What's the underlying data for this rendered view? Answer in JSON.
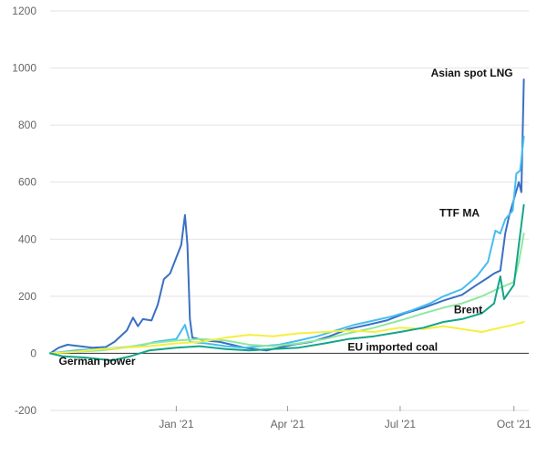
{
  "chart_data": {
    "type": "line",
    "title": "",
    "xlabel": "",
    "ylabel": "",
    "ylim": [
      -200,
      1200
    ],
    "y_ticks": [
      -200,
      0,
      200,
      400,
      600,
      800,
      1000,
      1200
    ],
    "x_range": [
      "2020-09-21",
      "2021-10-13"
    ],
    "x_ticks": [
      {
        "date": "2021-01-01",
        "label": "Jan '21"
      },
      {
        "date": "2021-04-01",
        "label": "Apr '21"
      },
      {
        "date": "2021-07-01",
        "label": "Jul '21"
      },
      {
        "date": "2021-10-01",
        "label": "Oct '21"
      }
    ],
    "grid": true,
    "legend": "none",
    "series": [
      {
        "name": "Asian spot LNG",
        "color": "#3b6fc4",
        "label_anchor_date": "2021-08-28",
        "label_anchor_value": 970,
        "points": [
          [
            "2020-09-21",
            0
          ],
          [
            "2020-09-28",
            20
          ],
          [
            "2020-10-05",
            30
          ],
          [
            "2020-10-15",
            25
          ],
          [
            "2020-10-25",
            20
          ],
          [
            "2020-11-05",
            22
          ],
          [
            "2020-11-12",
            40
          ],
          [
            "2020-11-22",
            80
          ],
          [
            "2020-11-27",
            125
          ],
          [
            "2020-12-01",
            95
          ],
          [
            "2020-12-05",
            120
          ],
          [
            "2020-12-12",
            115
          ],
          [
            "2020-12-17",
            170
          ],
          [
            "2020-12-22",
            260
          ],
          [
            "2020-12-27",
            280
          ],
          [
            "2021-01-05",
            380
          ],
          [
            "2021-01-08",
            485
          ],
          [
            "2021-01-10",
            380
          ],
          [
            "2021-01-12",
            120
          ],
          [
            "2021-01-14",
            55
          ],
          [
            "2021-01-25",
            45
          ],
          [
            "2021-02-05",
            40
          ],
          [
            "2021-02-15",
            30
          ],
          [
            "2021-02-25",
            20
          ],
          [
            "2021-03-05",
            15
          ],
          [
            "2021-03-15",
            10
          ],
          [
            "2021-03-25",
            20
          ],
          [
            "2021-04-05",
            30
          ],
          [
            "2021-04-20",
            40
          ],
          [
            "2021-05-05",
            60
          ],
          [
            "2021-05-20",
            85
          ],
          [
            "2021-06-05",
            100
          ],
          [
            "2021-06-20",
            115
          ],
          [
            "2021-07-05",
            140
          ],
          [
            "2021-07-20",
            160
          ],
          [
            "2021-08-05",
            185
          ],
          [
            "2021-08-20",
            205
          ],
          [
            "2021-09-01",
            240
          ],
          [
            "2021-09-10",
            265
          ],
          [
            "2021-09-15",
            280
          ],
          [
            "2021-09-20",
            290
          ],
          [
            "2021-09-24",
            420
          ],
          [
            "2021-09-27",
            480
          ],
          [
            "2021-10-03",
            570
          ],
          [
            "2021-10-05",
            600
          ],
          [
            "2021-10-07",
            565
          ],
          [
            "2021-10-09",
            960
          ]
        ]
      },
      {
        "name": "TTF MA",
        "color": "#46bdf0",
        "label_anchor_date": "2021-08-18",
        "label_anchor_value": 480,
        "points": [
          [
            "2020-09-21",
            0
          ],
          [
            "2020-10-01",
            5
          ],
          [
            "2020-10-15",
            12
          ],
          [
            "2020-11-01",
            15
          ],
          [
            "2020-11-15",
            20
          ],
          [
            "2020-12-01",
            25
          ],
          [
            "2020-12-15",
            40
          ],
          [
            "2021-01-01",
            50
          ],
          [
            "2021-01-08",
            100
          ],
          [
            "2021-01-12",
            40
          ],
          [
            "2021-01-25",
            35
          ],
          [
            "2021-02-10",
            25
          ],
          [
            "2021-02-25",
            20
          ],
          [
            "2021-03-10",
            25
          ],
          [
            "2021-03-25",
            30
          ],
          [
            "2021-04-10",
            45
          ],
          [
            "2021-04-25",
            60
          ],
          [
            "2021-05-10",
            80
          ],
          [
            "2021-05-25",
            100
          ],
          [
            "2021-06-10",
            115
          ],
          [
            "2021-06-25",
            130
          ],
          [
            "2021-07-10",
            150
          ],
          [
            "2021-07-25",
            175
          ],
          [
            "2021-08-05",
            200
          ],
          [
            "2021-08-20",
            225
          ],
          [
            "2021-09-01",
            270
          ],
          [
            "2021-09-10",
            320
          ],
          [
            "2021-09-16",
            430
          ],
          [
            "2021-09-20",
            420
          ],
          [
            "2021-09-24",
            470
          ],
          [
            "2021-09-30",
            500
          ],
          [
            "2021-10-03",
            630
          ],
          [
            "2021-10-06",
            640
          ],
          [
            "2021-10-09",
            760
          ]
        ]
      },
      {
        "name": "Brent",
        "color": "#8ee8a0",
        "label_anchor_date": "2021-08-25",
        "label_anchor_value": 140,
        "points": [
          [
            "2020-09-21",
            0
          ],
          [
            "2020-10-10",
            5
          ],
          [
            "2020-11-01",
            10
          ],
          [
            "2020-11-20",
            20
          ],
          [
            "2020-12-10",
            35
          ],
          [
            "2021-01-01",
            45
          ],
          [
            "2021-01-20",
            50
          ],
          [
            "2021-02-10",
            45
          ],
          [
            "2021-03-01",
            30
          ],
          [
            "2021-03-20",
            25
          ],
          [
            "2021-04-10",
            35
          ],
          [
            "2021-05-01",
            50
          ],
          [
            "2021-05-20",
            70
          ],
          [
            "2021-06-10",
            90
          ],
          [
            "2021-07-01",
            115
          ],
          [
            "2021-07-20",
            140
          ],
          [
            "2021-08-05",
            160
          ],
          [
            "2021-08-20",
            175
          ],
          [
            "2021-09-05",
            200
          ],
          [
            "2021-09-20",
            230
          ],
          [
            "2021-10-01",
            250
          ],
          [
            "2021-10-05",
            320
          ],
          [
            "2021-10-09",
            420
          ]
        ]
      },
      {
        "name": "EU imported coal",
        "color": "#f5ef40",
        "label_anchor_date": "2021-06-25",
        "label_anchor_value": 10,
        "points": [
          [
            "2020-09-21",
            0
          ],
          [
            "2020-10-10",
            5
          ],
          [
            "2020-11-01",
            15
          ],
          [
            "2020-11-20",
            20
          ],
          [
            "2020-12-10",
            25
          ],
          [
            "2021-01-01",
            35
          ],
          [
            "2021-01-20",
            40
          ],
          [
            "2021-02-10",
            55
          ],
          [
            "2021-03-01",
            65
          ],
          [
            "2021-03-20",
            60
          ],
          [
            "2021-04-10",
            70
          ],
          [
            "2021-05-01",
            75
          ],
          [
            "2021-05-20",
            80
          ],
          [
            "2021-06-10",
            75
          ],
          [
            "2021-07-01",
            90
          ],
          [
            "2021-07-20",
            85
          ],
          [
            "2021-08-05",
            95
          ],
          [
            "2021-08-20",
            85
          ],
          [
            "2021-09-05",
            75
          ],
          [
            "2021-09-20",
            90
          ],
          [
            "2021-10-01",
            100
          ],
          [
            "2021-10-09",
            110
          ]
        ]
      },
      {
        "name": "German power",
        "color": "#13a589",
        "label_anchor_date": "2020-10-29",
        "label_anchor_value": -40,
        "points": [
          [
            "2020-09-21",
            0
          ],
          [
            "2020-10-01",
            -10
          ],
          [
            "2020-10-20",
            -15
          ],
          [
            "2020-11-10",
            -25
          ],
          [
            "2020-11-25",
            -10
          ],
          [
            "2020-12-10",
            10
          ],
          [
            "2021-01-01",
            20
          ],
          [
            "2021-01-20",
            25
          ],
          [
            "2021-02-10",
            15
          ],
          [
            "2021-03-01",
            10
          ],
          [
            "2021-03-20",
            15
          ],
          [
            "2021-04-10",
            20
          ],
          [
            "2021-05-01",
            35
          ],
          [
            "2021-05-20",
            50
          ],
          [
            "2021-06-10",
            60
          ],
          [
            "2021-07-01",
            75
          ],
          [
            "2021-07-20",
            90
          ],
          [
            "2021-08-05",
            110
          ],
          [
            "2021-08-20",
            120
          ],
          [
            "2021-09-05",
            140
          ],
          [
            "2021-09-15",
            175
          ],
          [
            "2021-09-20",
            270
          ],
          [
            "2021-09-23",
            190
          ],
          [
            "2021-10-01",
            240
          ],
          [
            "2021-10-05",
            380
          ],
          [
            "2021-10-09",
            520
          ]
        ]
      }
    ]
  }
}
